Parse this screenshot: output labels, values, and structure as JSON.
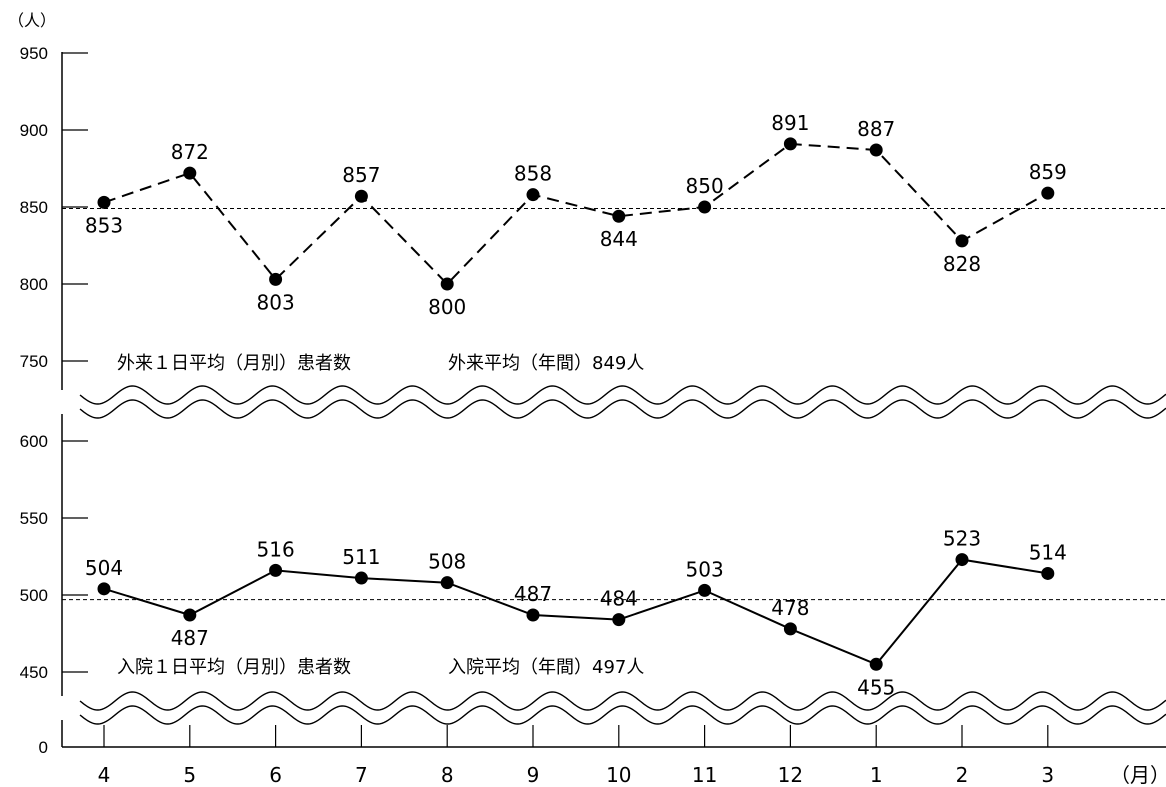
{
  "chart_data": {
    "type": "line",
    "y_unit": "（人）",
    "x_unit": "（月）",
    "categories": [
      "4",
      "5",
      "6",
      "7",
      "8",
      "9",
      "10",
      "11",
      "12",
      "1",
      "2",
      "3"
    ],
    "grid": false,
    "axis_break": true,
    "y_ticks_upper": [
      950,
      900,
      850,
      800,
      750
    ],
    "y_ticks_lower": [
      600,
      550,
      500,
      450,
      0
    ],
    "ylim_upper": [
      725,
      950
    ],
    "ylim_lower": [
      425,
      625
    ],
    "series": [
      {
        "name": "外来１日平均（月別）患者数",
        "style": "dashed",
        "values": [
          853,
          872,
          803,
          857,
          800,
          858,
          844,
          850,
          891,
          887,
          828,
          859
        ],
        "label_position": [
          "below",
          "above",
          "below",
          "above",
          "below",
          "above",
          "below",
          "above",
          "above",
          "above",
          "below",
          "above"
        ],
        "average_label": "外来平均（年間）849人",
        "average": 849
      },
      {
        "name": "入院１日平均（月別）患者数",
        "style": "solid",
        "values": [
          504,
          487,
          516,
          511,
          508,
          487,
          484,
          503,
          478,
          455,
          523,
          514
        ],
        "label_position": [
          "above",
          "below",
          "above",
          "above",
          "above",
          "above",
          "above",
          "above",
          "above",
          "below",
          "above",
          "above"
        ],
        "average_label": "入院平均（年間）497人",
        "average": 497
      }
    ],
    "colors": {
      "line": "#000000",
      "background": "#ffffff"
    }
  }
}
